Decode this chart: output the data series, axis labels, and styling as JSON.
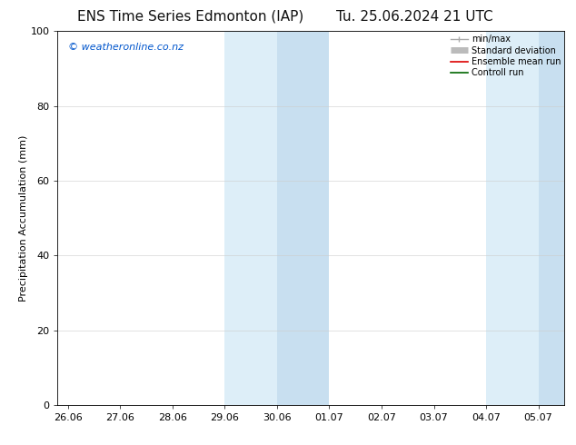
{
  "title_left": "ENS Time Series Edmonton (IAP)",
  "title_right": "Tu. 25.06.2024 21 UTC",
  "ylabel": "Precipitation Accumulation (mm)",
  "ylim": [
    0,
    100
  ],
  "yticks": [
    0,
    20,
    40,
    60,
    80,
    100
  ],
  "x_tick_labels": [
    "26.06",
    "27.06",
    "28.06",
    "29.06",
    "30.06",
    "01.07",
    "02.07",
    "03.07",
    "04.07",
    "05.07"
  ],
  "background_color": "#ffffff",
  "plot_bg_color": "#ffffff",
  "shaded_bands": [
    {
      "xmin": 3.0,
      "xmax": 4.0,
      "color": "#ddeef8"
    },
    {
      "xmin": 4.0,
      "xmax": 5.0,
      "color": "#c8dff0"
    },
    {
      "xmin": 8.0,
      "xmax": 9.0,
      "color": "#ddeef8"
    },
    {
      "xmin": 9.0,
      "xmax": 9.5,
      "color": "#c8dff0"
    }
  ],
  "watermark_text": "© weatheronline.co.nz",
  "watermark_color": "#0055cc",
  "legend_labels": [
    "min/max",
    "Standard deviation",
    "Ensemble mean run",
    "Controll run"
  ],
  "legend_line_colors": [
    "#aaaaaa",
    "#bbbbbb",
    "#dd0000",
    "#006600"
  ],
  "title_fontsize": 11,
  "ylabel_fontsize": 8,
  "tick_fontsize": 8,
  "legend_fontsize": 7,
  "watermark_fontsize": 8
}
